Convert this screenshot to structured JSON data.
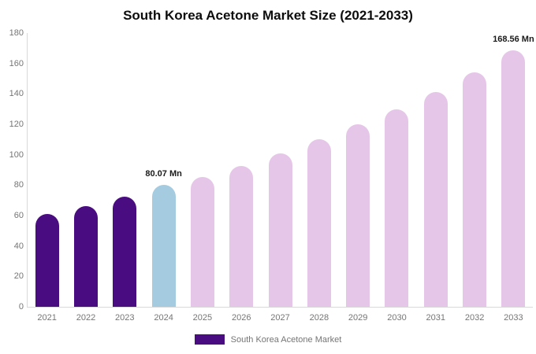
{
  "legend": {
    "label": "South Korea Acetone Market",
    "swatch_color": "#490d81"
  },
  "colors": {
    "historical_bar": "#490d81",
    "current_year_bar": "#a4cbe0",
    "forecast_bar": "#e6c6e8",
    "axis_text": "#757575",
    "axis_line": "#d9d9d9",
    "title_text": "#0d0d0d"
  },
  "chart_data": {
    "type": "bar",
    "title": "South Korea Acetone Market Size (2021-2033)",
    "categories": [
      "2021",
      "2022",
      "2023",
      "2024",
      "2025",
      "2026",
      "2027",
      "2028",
      "2029",
      "2030",
      "2031",
      "2032",
      "2033"
    ],
    "values": [
      61,
      66,
      72.5,
      80.07,
      85.5,
      92.5,
      101,
      110,
      120,
      130,
      141,
      154,
      168.56
    ],
    "bar_colors": [
      "#490d81",
      "#490d81",
      "#490d81",
      "#a4cbe0",
      "#e6c6e8",
      "#e6c6e8",
      "#e6c6e8",
      "#e6c6e8",
      "#e6c6e8",
      "#e6c6e8",
      "#e6c6e8",
      "#e6c6e8",
      "#e6c6e8"
    ],
    "annotations": [
      {
        "category": "2024",
        "text": "80.07 Mn"
      },
      {
        "category": "2033",
        "text": "168.56 Mn"
      }
    ],
    "xlabel": "",
    "ylabel": "",
    "ylim": [
      0,
      180
    ],
    "yticks": [
      0,
      20,
      40,
      60,
      80,
      100,
      120,
      140,
      160,
      180
    ],
    "grid": false,
    "legend_position": "bottom"
  }
}
